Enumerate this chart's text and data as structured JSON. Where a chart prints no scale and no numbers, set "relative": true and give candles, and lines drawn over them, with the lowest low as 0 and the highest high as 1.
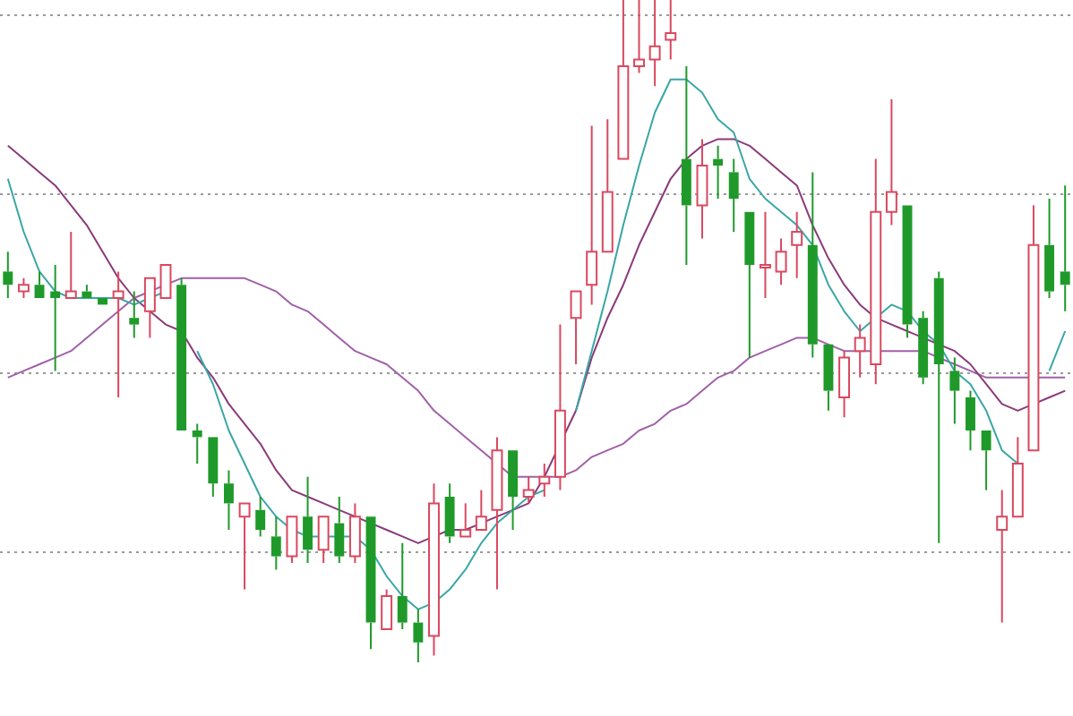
{
  "chart_data": {
    "type": "candlestick",
    "relative": true,
    "grid": true,
    "legend": false,
    "categories": [
      null,
      null,
      null,
      null,
      null,
      null,
      null,
      null,
      null,
      null,
      null,
      null,
      null,
      null,
      null,
      null,
      null,
      null,
      null,
      null,
      null,
      null,
      null,
      null,
      null,
      null,
      null,
      null,
      null,
      null,
      null,
      null,
      null,
      null,
      null,
      null,
      null,
      null,
      null,
      null,
      null,
      null,
      null,
      null,
      null,
      null,
      null,
      null,
      null,
      null,
      null,
      null,
      null,
      null,
      null,
      null,
      null,
      null,
      null,
      null,
      null,
      null,
      null,
      null,
      null,
      null,
      null,
      null
    ],
    "ohlc": [
      [
        0.59,
        0.62,
        0.55,
        0.57
      ],
      [
        0.56,
        0.58,
        0.55,
        0.57
      ],
      [
        0.57,
        0.59,
        0.55,
        0.55
      ],
      [
        0.56,
        0.6,
        0.44,
        0.55
      ],
      [
        0.55,
        0.65,
        0.55,
        0.56
      ],
      [
        0.56,
        0.57,
        0.55,
        0.55
      ],
      [
        0.55,
        0.55,
        0.54,
        0.54
      ],
      [
        0.55,
        0.59,
        0.4,
        0.56
      ],
      [
        0.52,
        0.56,
        0.49,
        0.51
      ],
      [
        0.53,
        0.58,
        0.49,
        0.58
      ],
      [
        0.55,
        0.6,
        0.55,
        0.6
      ],
      [
        0.57,
        0.58,
        0.35,
        0.35
      ],
      [
        0.35,
        0.36,
        0.3,
        0.34
      ],
      [
        0.34,
        0.34,
        0.25,
        0.27
      ],
      [
        0.27,
        0.29,
        0.2,
        0.24
      ],
      [
        0.22,
        0.24,
        0.11,
        0.24
      ],
      [
        0.23,
        0.25,
        0.19,
        0.2
      ],
      [
        0.19,
        0.22,
        0.14,
        0.16
      ],
      [
        0.16,
        0.22,
        0.15,
        0.22
      ],
      [
        0.22,
        0.28,
        0.15,
        0.17
      ],
      [
        0.17,
        0.22,
        0.15,
        0.22
      ],
      [
        0.21,
        0.25,
        0.15,
        0.16
      ],
      [
        0.16,
        0.24,
        0.15,
        0.22
      ],
      [
        0.22,
        0.22,
        0.02,
        0.06
      ],
      [
        0.05,
        0.11,
        0.05,
        0.1
      ],
      [
        0.1,
        0.18,
        0.05,
        0.06
      ],
      [
        0.06,
        0.08,
        0,
        0.03
      ],
      [
        0.04,
        0.27,
        0.01,
        0.24
      ],
      [
        0.25,
        0.27,
        0.18,
        0.19
      ],
      [
        0.19,
        0.24,
        0.19,
        0.2
      ],
      [
        0.2,
        0.26,
        0.2,
        0.22
      ],
      [
        0.23,
        0.34,
        0.11,
        0.32
      ],
      [
        0.32,
        0.32,
        0.2,
        0.25
      ],
      [
        0.25,
        0.28,
        0.24,
        0.26
      ],
      [
        0.27,
        0.3,
        0.25,
        0.28
      ],
      [
        0.28,
        0.51,
        0.26,
        0.38
      ],
      [
        0.52,
        0.56,
        0.45,
        0.56
      ],
      [
        0.57,
        0.81,
        0.54,
        0.62
      ],
      [
        0.62,
        0.82,
        0.62,
        0.71
      ],
      [
        0.76,
        1,
        0.76,
        0.9
      ],
      [
        0.9,
        1,
        0.89,
        0.91
      ],
      [
        0.91,
        1,
        0.87,
        0.93
      ],
      [
        0.94,
        1,
        0.91,
        0.95
      ],
      [
        0.76,
        0.9,
        0.6,
        0.69
      ],
      [
        0.69,
        0.79,
        0.64,
        0.75
      ],
      [
        0.76,
        0.78,
        0.7,
        0.75
      ],
      [
        0.74,
        0.76,
        0.65,
        0.7
      ],
      [
        0.68,
        0.68,
        0.46,
        0.6
      ],
      [
        0.6,
        0.68,
        0.55,
        0.6
      ],
      [
        0.59,
        0.64,
        0.57,
        0.62
      ],
      [
        0.63,
        0.68,
        0.58,
        0.65
      ],
      [
        0.63,
        0.74,
        0.46,
        0.48
      ],
      [
        0.48,
        0.48,
        0.38,
        0.41
      ],
      [
        0.4,
        0.47,
        0.37,
        0.46
      ],
      [
        0.47,
        0.51,
        0.43,
        0.49
      ],
      [
        0.45,
        0.76,
        0.42,
        0.68
      ],
      [
        0.68,
        0.85,
        0.66,
        0.71
      ],
      [
        0.69,
        0.69,
        0.49,
        0.51
      ],
      [
        0.52,
        0.53,
        0.42,
        0.43
      ],
      [
        0.58,
        0.59,
        0.18,
        0.45
      ],
      [
        0.44,
        0.46,
        0.36,
        0.41
      ],
      [
        0.4,
        0.41,
        0.32,
        0.35
      ],
      [
        0.35,
        0.35,
        0.26,
        0.32
      ],
      [
        0.2,
        0.26,
        0.06,
        0.22
      ],
      [
        0.22,
        0.34,
        0.22,
        0.3
      ],
      [
        0.32,
        0.69,
        0.32,
        0.63
      ],
      [
        0.63,
        0.7,
        0.55,
        0.56
      ],
      [
        0.59,
        0.72,
        0.53,
        0.57
      ]
    ],
    "series": [
      {
        "type": "line",
        "color": "#3aa6a6",
        "values": [
          0.73,
          0.65,
          0.59,
          0.56,
          0.55,
          0.55,
          0.55,
          0.55,
          0.54,
          0.55,
          0.56,
          null,
          0.47,
          0.42,
          0.35,
          0.3,
          0.25,
          0.22,
          0.2,
          0.19,
          0.19,
          0.19,
          0.19,
          0.17,
          0.13,
          0.1,
          0.08,
          0.09,
          0.11,
          0.14,
          0.18,
          0.21,
          0.23,
          0.25,
          0.26,
          null,
          0.38,
          0.47,
          0.56,
          0.66,
          0.75,
          0.83,
          0.88,
          0.88,
          0.86,
          0.82,
          0.8,
          0.73,
          0.7,
          0.68,
          0.66,
          0.63,
          0.57,
          0.53,
          0.5,
          0.52,
          0.54,
          0.53,
          0.5,
          0.48,
          0.44,
          0.42,
          0.38,
          0.32,
          0.3,
          null,
          0.44,
          0.5
        ]
      },
      {
        "type": "line",
        "color": "#8a3a7a",
        "values": [
          0.78,
          0.76,
          0.74,
          0.72,
          0.69,
          0.66,
          0.62,
          0.58,
          0.55,
          0.53,
          0.51,
          0.5,
          0.46,
          0.43,
          0.39,
          0.36,
          0.33,
          0.29,
          0.26,
          0.25,
          0.24,
          0.23,
          0.22,
          0.21,
          0.2,
          0.19,
          0.18,
          0.19,
          0.2,
          0.2,
          0.21,
          0.22,
          0.23,
          0.24,
          0.28,
          0.33,
          0.38,
          0.46,
          0.52,
          0.57,
          0.63,
          0.68,
          0.73,
          0.76,
          0.78,
          0.79,
          0.79,
          0.78,
          0.76,
          0.74,
          0.72,
          0.66,
          0.61,
          0.57,
          0.54,
          0.52,
          0.51,
          0.5,
          0.49,
          0.48,
          0.47,
          0.45,
          0.42,
          0.39,
          0.38,
          0.39,
          0.4,
          0.41
        ]
      },
      {
        "type": "line",
        "color": "#a060a8",
        "values": [
          0.43,
          0.44,
          0.45,
          0.46,
          0.47,
          0.49,
          0.51,
          0.53,
          0.55,
          0.56,
          0.57,
          0.58,
          0.58,
          0.58,
          0.58,
          0.58,
          0.57,
          0.56,
          0.54,
          0.53,
          0.51,
          0.49,
          0.47,
          0.46,
          0.45,
          0.43,
          0.41,
          0.38,
          0.36,
          0.34,
          0.32,
          0.3,
          0.28,
          0.28,
          0.28,
          0.28,
          0.29,
          0.31,
          0.32,
          0.33,
          0.35,
          0.36,
          0.38,
          0.39,
          0.41,
          0.43,
          0.44,
          0.46,
          0.47,
          0.48,
          0.49,
          0.49,
          0.48,
          0.47,
          0.47,
          0.47,
          0.47,
          0.47,
          0.47,
          0.46,
          0.45,
          0.44,
          0.43,
          0.43,
          0.43,
          0.43,
          0.43,
          0.43
        ]
      }
    ]
  }
}
